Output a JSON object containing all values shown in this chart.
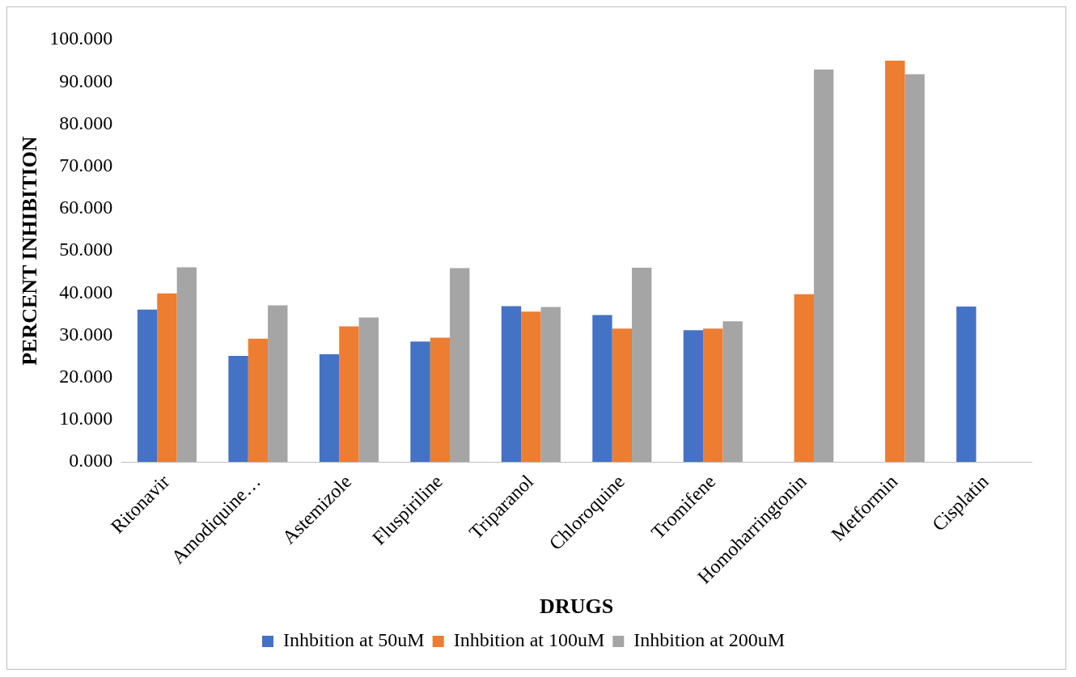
{
  "chart_data": {
    "type": "bar",
    "xlabel": "DRUGS",
    "ylabel": "PERCENT INHIBITION",
    "categories": [
      "Ritonavir",
      "Amodiquine…",
      "Astemizole",
      "Fluspiriline",
      "Triparanol",
      "Chloroquine",
      "Tromifene",
      "Homoharringtonin",
      "Metformin",
      "Cisplatin"
    ],
    "series": [
      {
        "name": "Inhbition at 50uM",
        "color": "#4472c4",
        "values": [
          36.1,
          25.1,
          25.5,
          28.5,
          36.9,
          34.8,
          31.2,
          null,
          null,
          36.8
        ]
      },
      {
        "name": "Inhbition at 100uM",
        "color": "#ed7d31",
        "values": [
          39.9,
          29.2,
          32.1,
          29.4,
          35.6,
          31.6,
          31.6,
          39.7,
          95.0,
          null
        ]
      },
      {
        "name": "Inhbition at 200uM",
        "color": "#a5a5a5",
        "values": [
          46.1,
          37.1,
          34.2,
          45.9,
          36.7,
          46.0,
          33.3,
          92.9,
          91.8,
          null
        ]
      }
    ],
    "ylim": [
      0,
      100
    ],
    "yticks": [
      {
        "value": 0,
        "label": "0.000"
      },
      {
        "value": 10,
        "label": "10.000"
      },
      {
        "value": 20,
        "label": "20.000"
      },
      {
        "value": 30,
        "label": "30.000"
      },
      {
        "value": 40,
        "label": "40.000"
      },
      {
        "value": 50,
        "label": "50.000"
      },
      {
        "value": 60,
        "label": "60.000"
      },
      {
        "value": 70,
        "label": "70.000"
      },
      {
        "value": 80,
        "label": "80.000"
      },
      {
        "value": 90,
        "label": "90.000"
      },
      {
        "value": 100,
        "label": "100.000"
      }
    ],
    "grid": false,
    "legend": "bottom"
  }
}
